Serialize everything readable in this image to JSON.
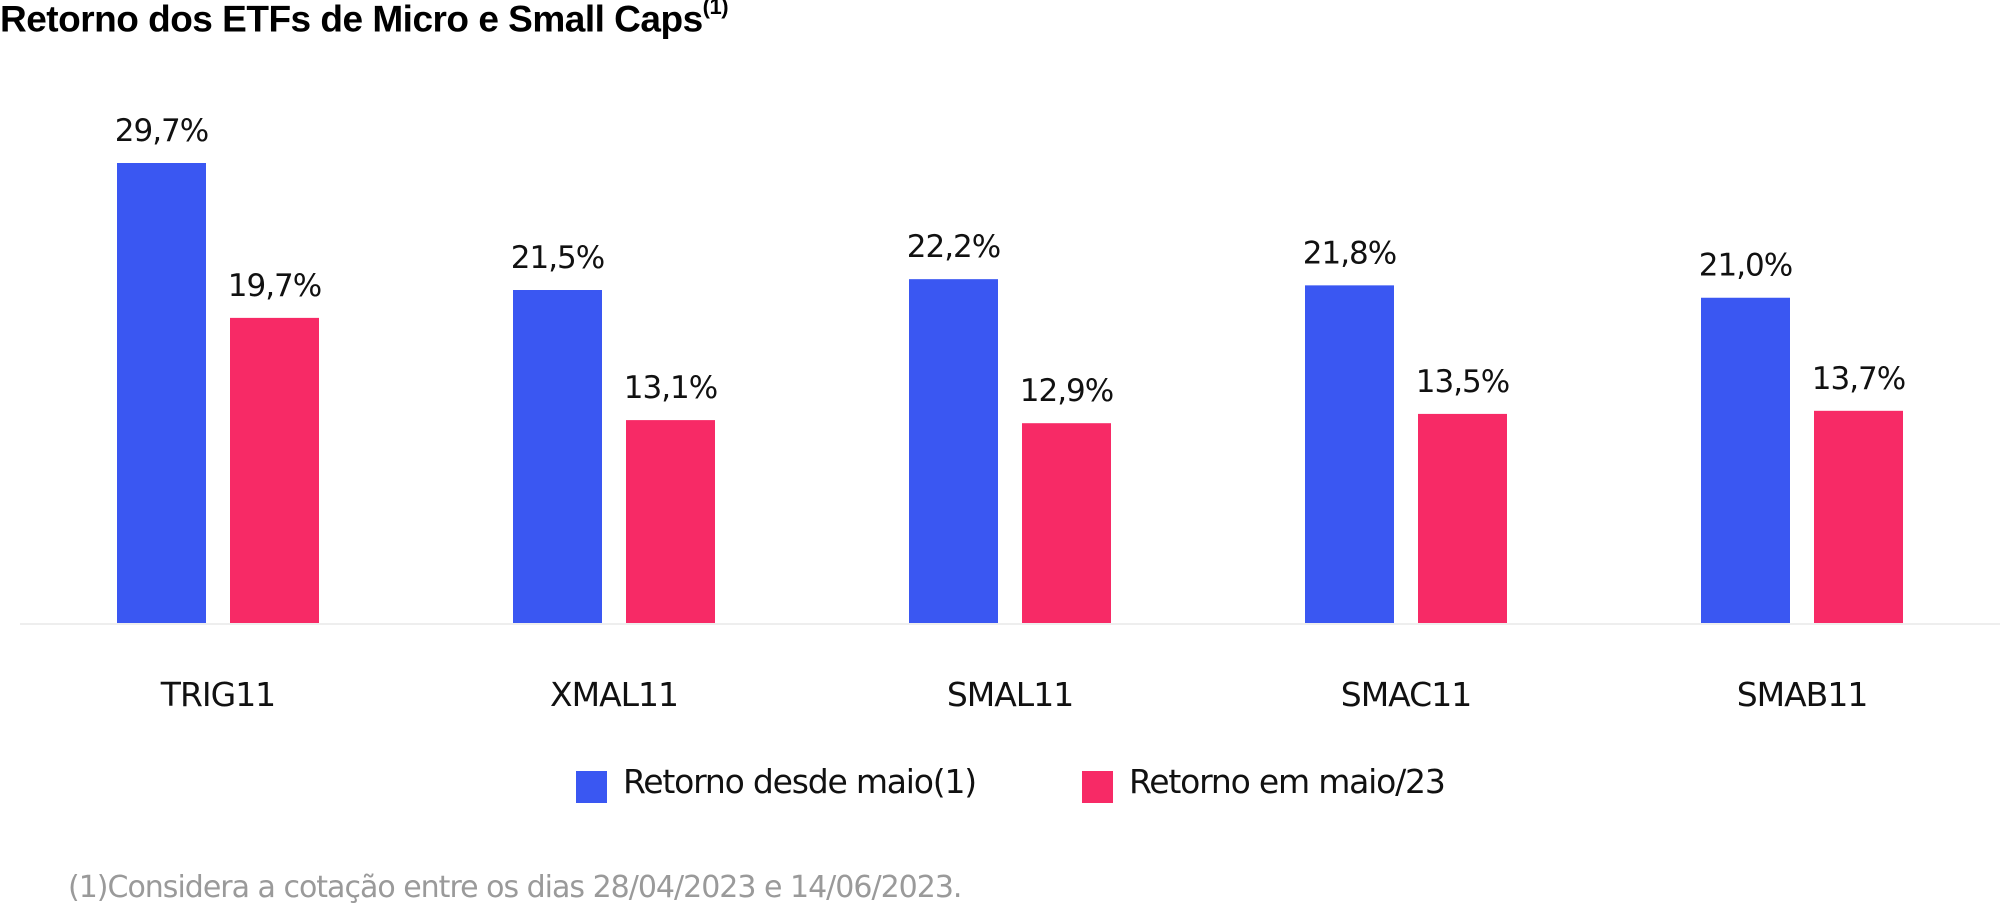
{
  "chart_data": {
    "type": "bar",
    "title": "Retorno dos ETFs de Micro e Small Caps",
    "title_superscript": "(1)",
    "categories": [
      "TRIG11",
      "XMAL11",
      "SMAL11",
      "SMAC11",
      "SMAB11"
    ],
    "series": [
      {
        "name": "Retorno desde maio(1)",
        "color": "#3A57F2",
        "values": [
          29.7,
          21.5,
          22.2,
          21.8,
          21.0
        ],
        "labels": [
          "29,7%",
          "21,5%",
          "22,2%",
          "21,8%",
          "21,0%"
        ]
      },
      {
        "name": "Retorno em maio/23",
        "color": "#F72A66",
        "values": [
          19.7,
          13.1,
          12.9,
          13.5,
          13.7
        ],
        "labels": [
          "19,7%",
          "13,1%",
          "12,9%",
          "13,5%",
          "13,7%"
        ]
      }
    ],
    "xlabel": "",
    "ylabel": "",
    "ylim": [
      0,
      29.7
    ],
    "grid": false,
    "legend_position": "bottom-center",
    "footnote": "(1)Considera a cotação entre os dias 28/04/2023 e 14/06/2023."
  }
}
